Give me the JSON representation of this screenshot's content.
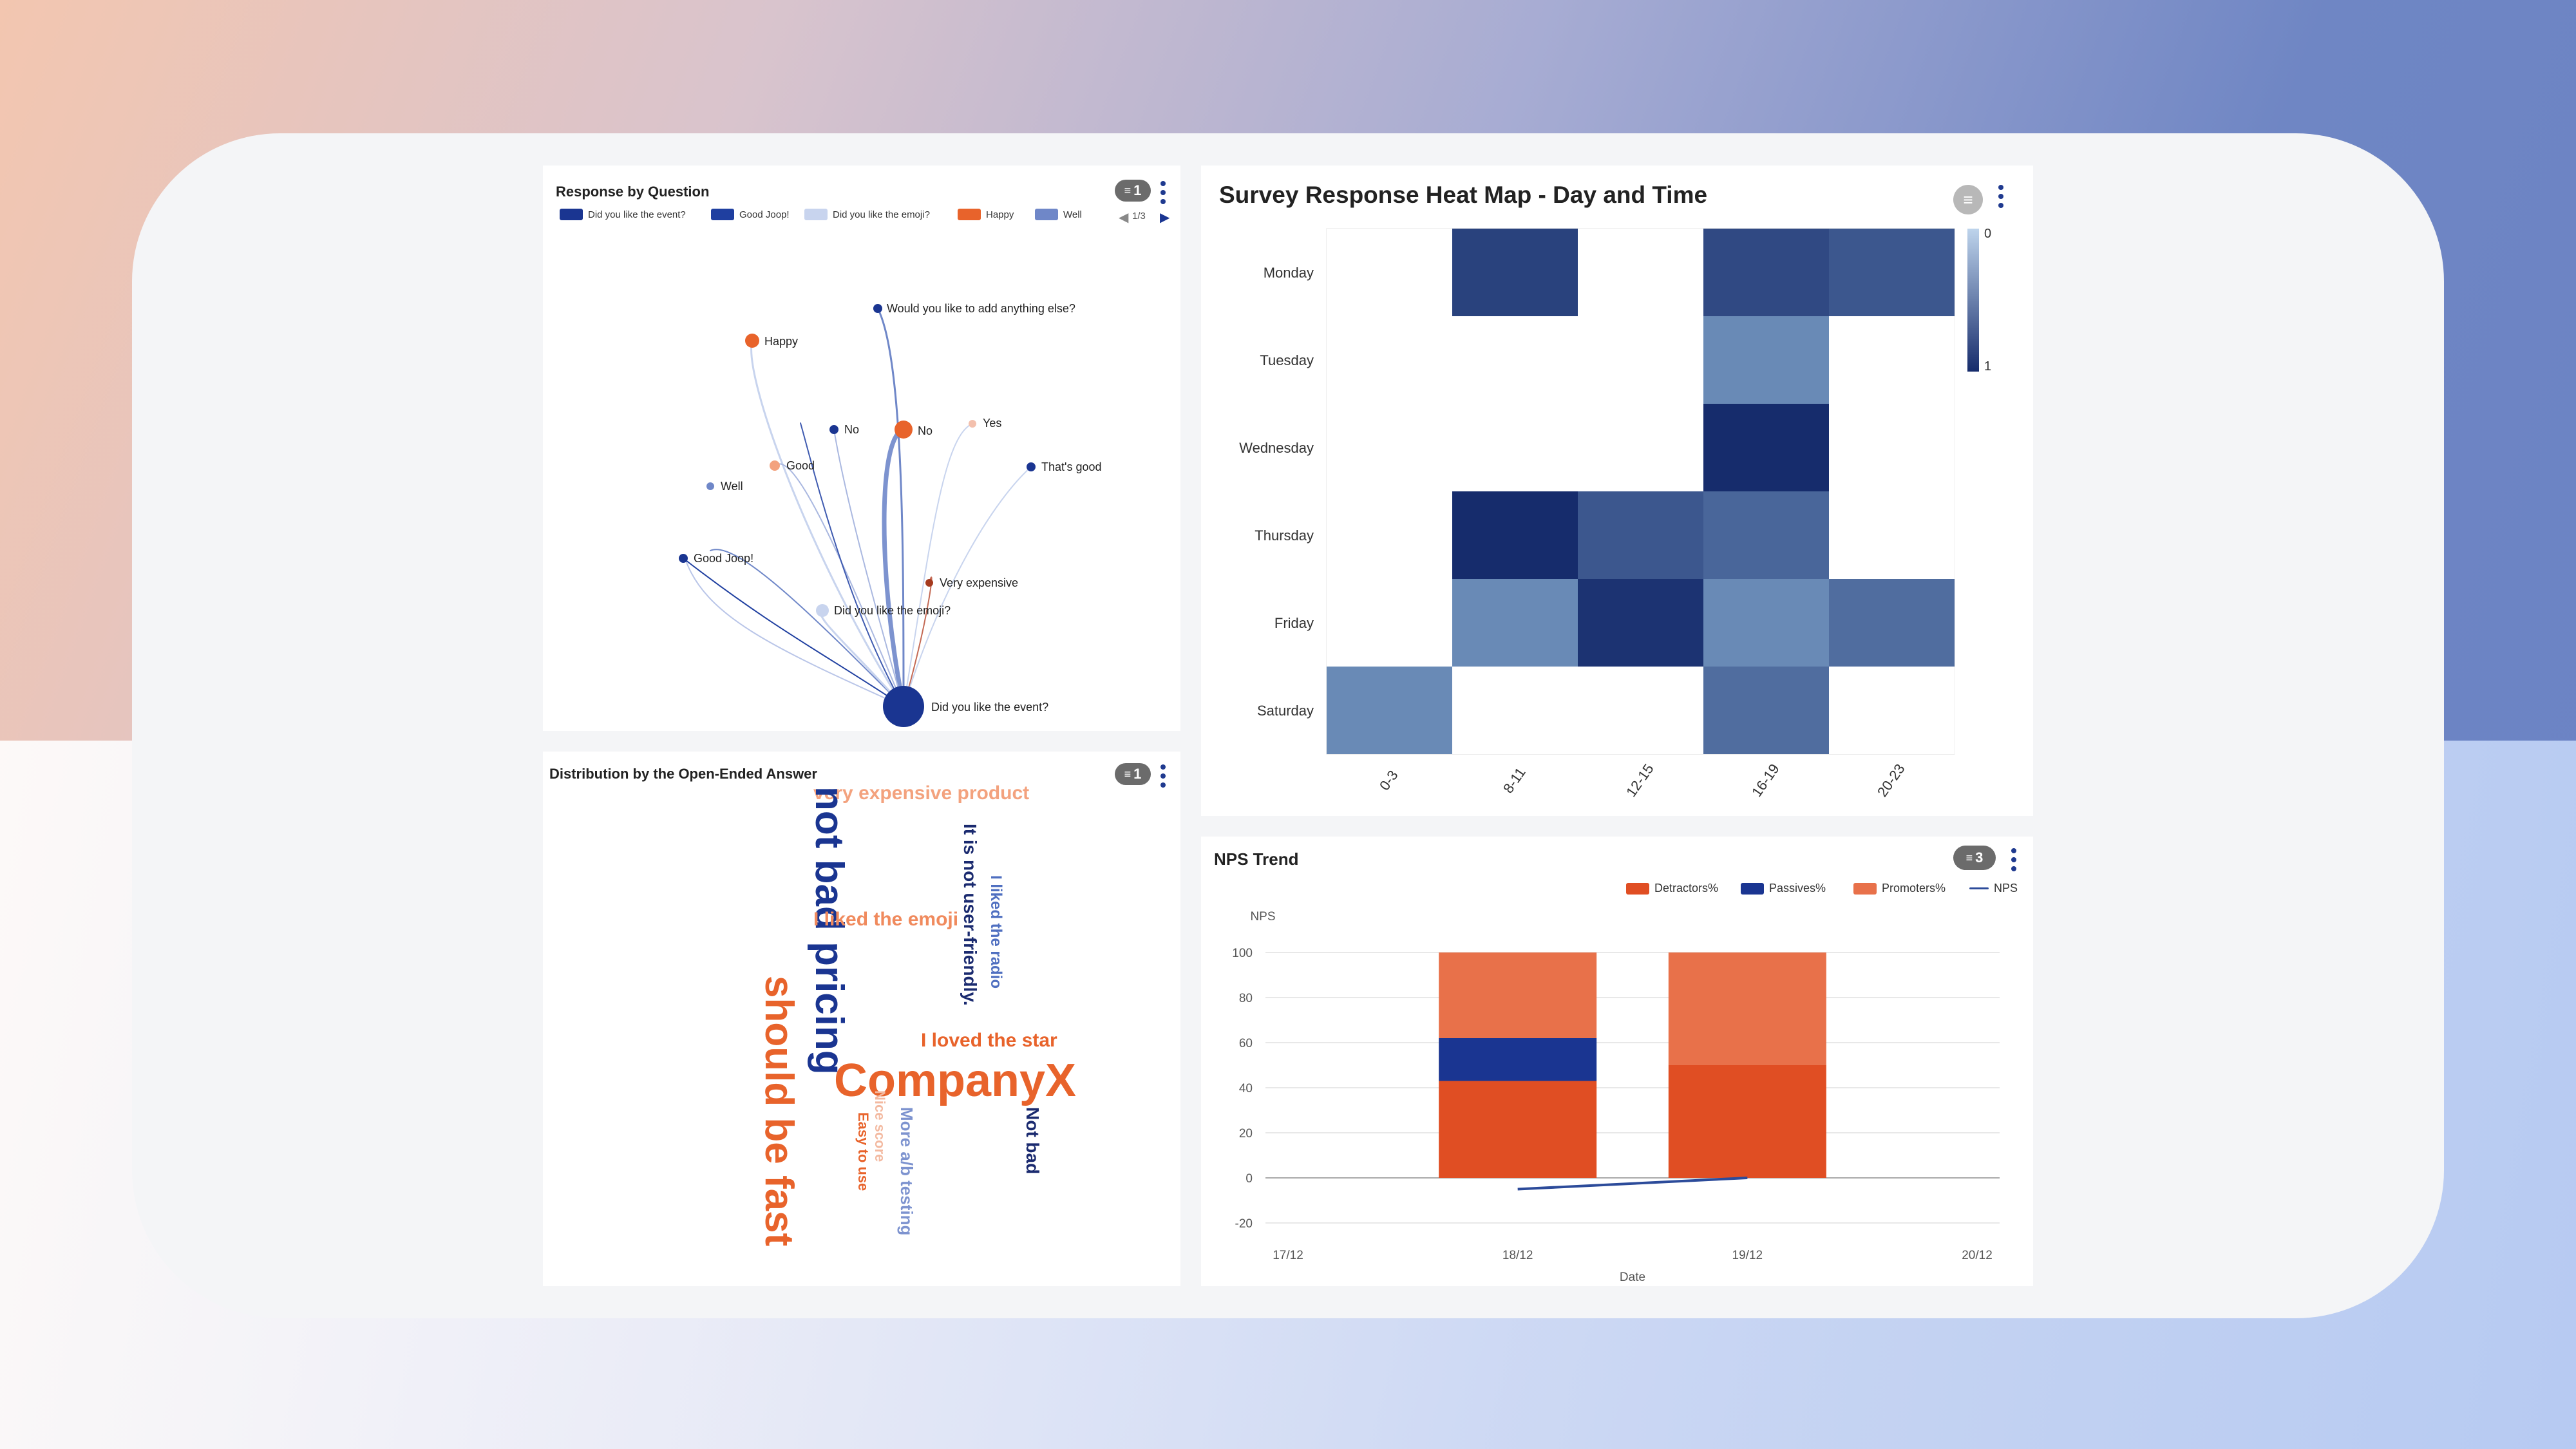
{
  "panels": {
    "response_by_question": {
      "title": "Response by Question",
      "filter_count": "1",
      "pager": "1/3",
      "legend": [
        {
          "label": "Did you like the event?",
          "color": "#1a3591"
        },
        {
          "label": "Good Joop!",
          "color": "#1f3fa0"
        },
        {
          "label": "Did you like the emoji?",
          "color": "#c8d4ee"
        },
        {
          "label": "Happy",
          "color": "#e8632b"
        },
        {
          "label": "Well",
          "color": "#6f87c8"
        }
      ],
      "nodes": {
        "anything_else": "Would you like to add  anything else?",
        "happy": "Happy",
        "no1": "No",
        "no2": "No",
        "yes": "Yes",
        "good": "Good",
        "thats_good": "That's good",
        "well": "Well",
        "good_joop": "Good Joop!",
        "very_expensive": "Very expensive",
        "emoji": "Did you like the emoji?",
        "event": "Did you like the event?"
      }
    },
    "heatmap": {
      "title": "Survey Response Heat Map - Day and Time",
      "rows": [
        "Monday",
        "Tuesday",
        "Wednesday",
        "Thursday",
        "Friday",
        "Saturday"
      ],
      "cols": [
        "0-3",
        "8-11",
        "12-15",
        "16-19",
        "20-23"
      ],
      "values": [
        [
          0,
          0.85,
          0,
          0.8,
          0.7
        ],
        [
          0,
          0,
          0,
          0.35,
          0
        ],
        [
          0,
          0,
          0,
          1,
          0
        ],
        [
          0,
          1,
          0.7,
          0.6,
          0
        ],
        [
          0,
          0.35,
          0.95,
          0.35,
          0.55
        ],
        [
          0.35,
          0,
          0,
          0.55,
          0
        ]
      ],
      "scale_min": "0",
      "scale_max": "1"
    },
    "wordcloud": {
      "title": "Distribution by the Open-Ended Answer",
      "filter_count": "1",
      "words": [
        {
          "text": "very expensive product",
          "color": "#f3a27e"
        },
        {
          "text": "not bad pricing",
          "color": "#1a3591"
        },
        {
          "text": "should be fast",
          "color": "#e8632b"
        },
        {
          "text": "I liked the emoji",
          "color": "#f08a5d"
        },
        {
          "text": "It is not user-friendly.",
          "color": "#1a2a6f"
        },
        {
          "text": "I liked the radio",
          "color": "#4f6fc0"
        },
        {
          "text": "I loved the star",
          "color": "#e8632b"
        },
        {
          "text": "CompanyX",
          "color": "#e8632b"
        },
        {
          "text": "Not bad",
          "color": "#1a2a6f"
        },
        {
          "text": "More a/b testing",
          "color": "#7d93cf"
        },
        {
          "text": "Easy to use",
          "color": "#e8632b"
        },
        {
          "text": "Nice score",
          "color": "#f3b9a0"
        }
      ]
    },
    "nps_trend": {
      "title": "NPS Trend",
      "filter_count": "3",
      "legend": [
        {
          "label": "Detractors%",
          "color": "#e04e23"
        },
        {
          "label": "Passives%",
          "color": "#1a3591"
        },
        {
          "label": "Promoters%",
          "color": "#e8714a"
        },
        {
          "label": "NPS",
          "color": "#2c4b9a"
        }
      ]
    }
  },
  "chart_data": [
    {
      "type": "heatmap",
      "title": "Survey Response Heat Map - Day and Time",
      "x": [
        "0-3",
        "8-11",
        "12-15",
        "16-19",
        "20-23"
      ],
      "y": [
        "Monday",
        "Tuesday",
        "Wednesday",
        "Thursday",
        "Friday",
        "Saturday"
      ],
      "values": [
        [
          0,
          0.85,
          0,
          0.8,
          0.7
        ],
        [
          0,
          0,
          0,
          0.35,
          0
        ],
        [
          0,
          0,
          0,
          1,
          0
        ],
        [
          0,
          1,
          0.7,
          0.6,
          0
        ],
        [
          0,
          0.35,
          0.95,
          0.35,
          0.55
        ],
        [
          0.35,
          0,
          0,
          0.55,
          0
        ]
      ],
      "zlim": [
        0,
        1
      ]
    },
    {
      "type": "bar",
      "title": "NPS Trend",
      "xlabel": "Date",
      "ylabel": "NPS",
      "categories": [
        "17/12",
        "18/12",
        "19/12",
        "20/12"
      ],
      "ylim": [
        -20,
        100
      ],
      "yticks": [
        -20,
        0,
        20,
        40,
        60,
        80,
        100
      ],
      "stacked": true,
      "series": [
        {
          "name": "Detractors%",
          "values": [
            0,
            43,
            50,
            0
          ]
        },
        {
          "name": "Passives%",
          "values": [
            0,
            19,
            0,
            0
          ]
        },
        {
          "name": "Promoters%",
          "values": [
            0,
            38,
            50,
            0
          ]
        },
        {
          "name": "NPS",
          "type": "line",
          "values": [
            null,
            -5,
            0,
            null
          ]
        }
      ]
    }
  ]
}
